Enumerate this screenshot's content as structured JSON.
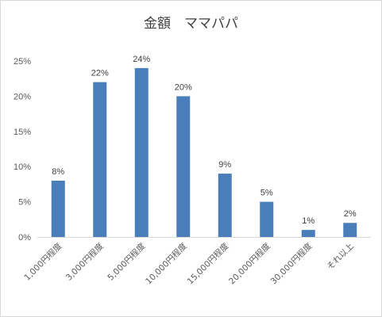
{
  "chart_data": {
    "type": "bar",
    "title": "金額　ママパパ",
    "categories": [
      "1,000円程度",
      "3,000円程度",
      "5,000円程度",
      "10,000円程度",
      "15,000円程度",
      "20,000円程度",
      "30,000円程度",
      "それ以上"
    ],
    "values": [
      8,
      22,
      24,
      20,
      9,
      5,
      1,
      2
    ],
    "data_labels": [
      "8%",
      "22%",
      "24%",
      "20%",
      "9%",
      "5%",
      "1%",
      "2%"
    ],
    "y_ticks": [
      "0%",
      "5%",
      "10%",
      "15%",
      "20%",
      "25%"
    ],
    "ylim": [
      0,
      25
    ],
    "bar_color": "#4a7ebb",
    "grid": false,
    "legend": false
  }
}
